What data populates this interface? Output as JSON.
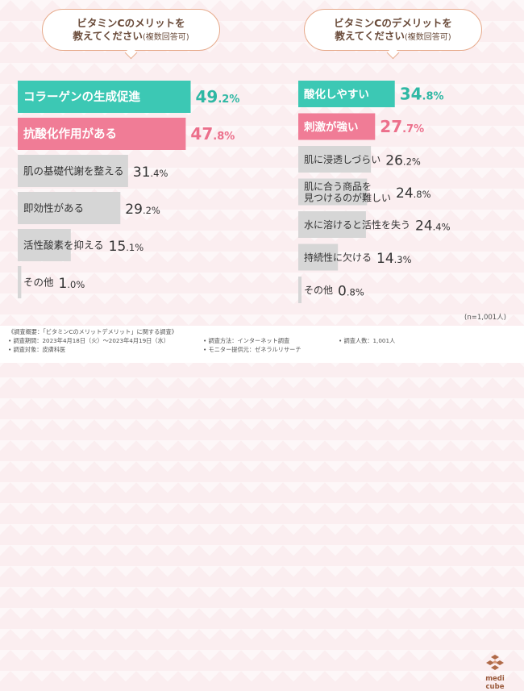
{
  "left_question": {
    "line1": "ビタミンCのメリットを",
    "line2": "教えてください",
    "note": "(複数回答可)"
  },
  "right_question": {
    "line1": "ビタミンCのデメリットを",
    "line2": "教えてください",
    "note": "(複数回答可)"
  },
  "chart_data": [
    {
      "type": "bar",
      "orientation": "horizontal",
      "title": "ビタミンCのメリットを教えてください(複数回答可)",
      "unit": "%",
      "categories": [
        "コラーゲンの生成促進",
        "抗酸化作用がある",
        "肌の基礎代謝を整える",
        "即効性がある",
        "活性酸素を抑える",
        "その他"
      ],
      "values": [
        49.2,
        47.8,
        31.4,
        29.2,
        15.1,
        1.0
      ],
      "labels": [
        "49.2",
        "47.8",
        "31.4",
        "29.2",
        "15.1",
        "1.0"
      ],
      "colors": [
        "#3cc8b4",
        "#f07c96",
        "#d6d6d6",
        "#d6d6d6",
        "#d6d6d6",
        "#d6d6d6"
      ],
      "xlim": [
        0,
        50
      ]
    },
    {
      "type": "bar",
      "orientation": "horizontal",
      "title": "ビタミンCのデメリットを教えてください(複数回答可)",
      "unit": "%",
      "categories": [
        "酸化しやすい",
        "刺激が強い",
        "肌に浸透しづらい",
        "肌に合う商品を見つけるのが難しい",
        "水に溶けると活性を失う",
        "持続性に欠ける",
        "その他"
      ],
      "values": [
        34.8,
        27.7,
        26.2,
        24.8,
        24.4,
        14.3,
        0.8
      ],
      "labels": [
        "34.8",
        "27.7",
        "26.2",
        "24.8",
        "24.4",
        "14.3",
        "0.8"
      ],
      "colors": [
        "#3cc8b4",
        "#f07c96",
        "#d6d6d6",
        "#d6d6d6",
        "#d6d6d6",
        "#d6d6d6",
        "#d6d6d6"
      ],
      "xlim": [
        0,
        50
      ]
    }
  ],
  "sample_size": "(n=1,001人)",
  "footer": {
    "title": "《調査概要：「ビタミンCのメリットデメリット」に関する調査》",
    "period": "• 調査期間：2023年4月18日（火）～2023年4月19日（水）",
    "target": "• 調査対象：皮膚科医",
    "method": "• 調査方法：インターネット調査",
    "provider": "• モニター提供元：ゼネラルリサーチ",
    "count": "• 調査人数：1,001人"
  },
  "brand": {
    "name": "medi cube"
  }
}
